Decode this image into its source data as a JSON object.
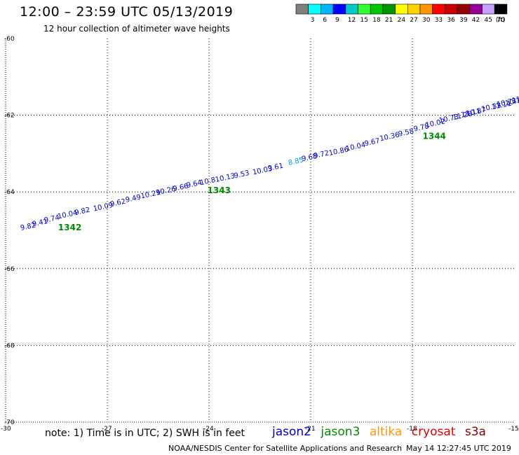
{
  "header": {
    "title": "12:00 – 23:59 UTC 05/13/2019",
    "subtitle": "12 hour collection of altimeter wave heights"
  },
  "scale": {
    "unit": "(ft)",
    "bins": [
      {
        "label": "",
        "color": "#7f7f7f"
      },
      {
        "label": "3",
        "color": "#00ffff"
      },
      {
        "label": "6",
        "color": "#00b4ff"
      },
      {
        "label": "9",
        "color": "#0000ff"
      },
      {
        "label": "12",
        "color": "#00c8c8"
      },
      {
        "label": "15",
        "color": "#33ff33"
      },
      {
        "label": "18",
        "color": "#00c800"
      },
      {
        "label": "21",
        "color": "#009600"
      },
      {
        "label": "24",
        "color": "#ffff00"
      },
      {
        "label": "27",
        "color": "#ffd200"
      },
      {
        "label": "30",
        "color": "#ff9600"
      },
      {
        "label": "33",
        "color": "#ff0000"
      },
      {
        "label": "36",
        "color": "#c80000"
      },
      {
        "label": "39",
        "color": "#960000"
      },
      {
        "label": "42",
        "color": "#960096"
      },
      {
        "label": "45",
        "color": "#c8a0ff"
      },
      {
        "label": "70",
        "color": "#000000"
      }
    ]
  },
  "chart_data": {
    "type": "scatter",
    "xlabel": "",
    "ylabel": "",
    "xlim": [
      -30,
      -15
    ],
    "ylim": [
      -70,
      -60
    ],
    "grid": true,
    "x_ticks": [
      "-30",
      "-27",
      "-24",
      "-21",
      "-18",
      "-15"
    ],
    "y_ticks": [
      "-60",
      "-62",
      "-64",
      "-66",
      "-68",
      "-70"
    ],
    "series": [
      {
        "name": "jason2",
        "color": "#0000c8",
        "points": [
          {
            "lon": -29.55,
            "lat": -65.0,
            "label": "9.82"
          },
          {
            "lon": -29.2,
            "lat": -64.9,
            "label": "9.41"
          },
          {
            "lon": -28.85,
            "lat": -64.8,
            "label": "9.74"
          },
          {
            "lon": -28.45,
            "lat": -64.7,
            "label": "10.04"
          },
          {
            "lon": -27.95,
            "lat": -64.6,
            "label": "9.82"
          },
          {
            "lon": -27.4,
            "lat": -64.5,
            "label": "10.09"
          },
          {
            "lon": -26.9,
            "lat": -64.38,
            "label": "9.62"
          },
          {
            "lon": -26.45,
            "lat": -64.27,
            "label": "9.49"
          },
          {
            "lon": -26.0,
            "lat": -64.17,
            "label": "10.29"
          },
          {
            "lon": -25.55,
            "lat": -64.08,
            "label": "10.26"
          },
          {
            "lon": -25.05,
            "lat": -63.98,
            "label": "9.66"
          },
          {
            "lon": -24.65,
            "lat": -63.89,
            "label": "9.64"
          },
          {
            "lon": -24.25,
            "lat": -63.82,
            "label": "10.8"
          },
          {
            "lon": -23.8,
            "lat": -63.74,
            "label": "10.13"
          },
          {
            "lon": -23.25,
            "lat": -63.64,
            "label": "9.53"
          },
          {
            "lon": -22.7,
            "lat": -63.55,
            "label": "10.03"
          },
          {
            "lon": -22.25,
            "lat": -63.45,
            "label": "9.61"
          },
          {
            "lon": -21.25,
            "lat": -63.2,
            "label": "9.68"
          },
          {
            "lon": -20.9,
            "lat": -63.12,
            "label": "9.72"
          },
          {
            "lon": -20.45,
            "lat": -63.05,
            "label": "10.86"
          },
          {
            "lon": -19.95,
            "lat": -62.93,
            "label": "10.04"
          },
          {
            "lon": -19.4,
            "lat": -62.8,
            "label": "9.67"
          },
          {
            "lon": -18.95,
            "lat": -62.67,
            "label": "10.36"
          },
          {
            "lon": -18.4,
            "lat": -62.55,
            "label": "9.58"
          },
          {
            "lon": -17.95,
            "lat": -62.42,
            "label": "9.78"
          },
          {
            "lon": -17.6,
            "lat": -62.32,
            "label": "10.02"
          },
          {
            "lon": -17.2,
            "lat": -62.2,
            "label": "10.73"
          },
          {
            "lon": -16.8,
            "lat": -62.12,
            "label": "11.28"
          },
          {
            "lon": -16.4,
            "lat": -62.02,
            "label": "10.87"
          },
          {
            "lon": -15.95,
            "lat": -61.9,
            "label": "10.33"
          },
          {
            "lon": -15.5,
            "lat": -61.78,
            "label": "10.73"
          },
          {
            "lon": -15.05,
            "lat": -61.68,
            "label": "11.36"
          },
          {
            "lon": -14.65,
            "lat": -61.58,
            "label": "11.49"
          },
          {
            "lon": -16.55,
            "lat": -62.05,
            "label": "11.11"
          },
          {
            "lon": -15.65,
            "lat": -61.85,
            "label": "11.11"
          },
          {
            "lon": -15.25,
            "lat": -61.75,
            "label": "10.11"
          },
          {
            "lon": -14.85,
            "lat": -61.65,
            "label": "11.11"
          },
          {
            "lon": -14.45,
            "lat": -61.55,
            "label": "11.11"
          }
        ]
      },
      {
        "name": "jason3",
        "color": "#008c00",
        "points": []
      },
      {
        "name": "altika",
        "color": "#ff9600",
        "points": []
      },
      {
        "name": "cryosat",
        "color": "#e00000",
        "points": []
      },
      {
        "name": "s3a",
        "color": "#800000",
        "points": []
      }
    ],
    "highlight_points": [
      {
        "lon": -21.65,
        "lat": -63.3,
        "label": "8.85",
        "color": "#00a0e0"
      }
    ],
    "orbit_labels": [
      {
        "lon": -28.45,
        "lat": -65.0,
        "label": "1342",
        "color": "#008c00"
      },
      {
        "lon": -24.05,
        "lat": -64.03,
        "label": "1343",
        "color": "#008c00"
      },
      {
        "lon": -17.7,
        "lat": -62.62,
        "label": "1344",
        "color": "#008c00"
      }
    ]
  },
  "footer": {
    "note": "note: 1) Time is in UTC; 2) SWH is in feet",
    "credit": "NOAA/NESDIS Center for Satellite Applications and Research",
    "timestamp": "May 14 12:27:45 UTC 2019"
  }
}
